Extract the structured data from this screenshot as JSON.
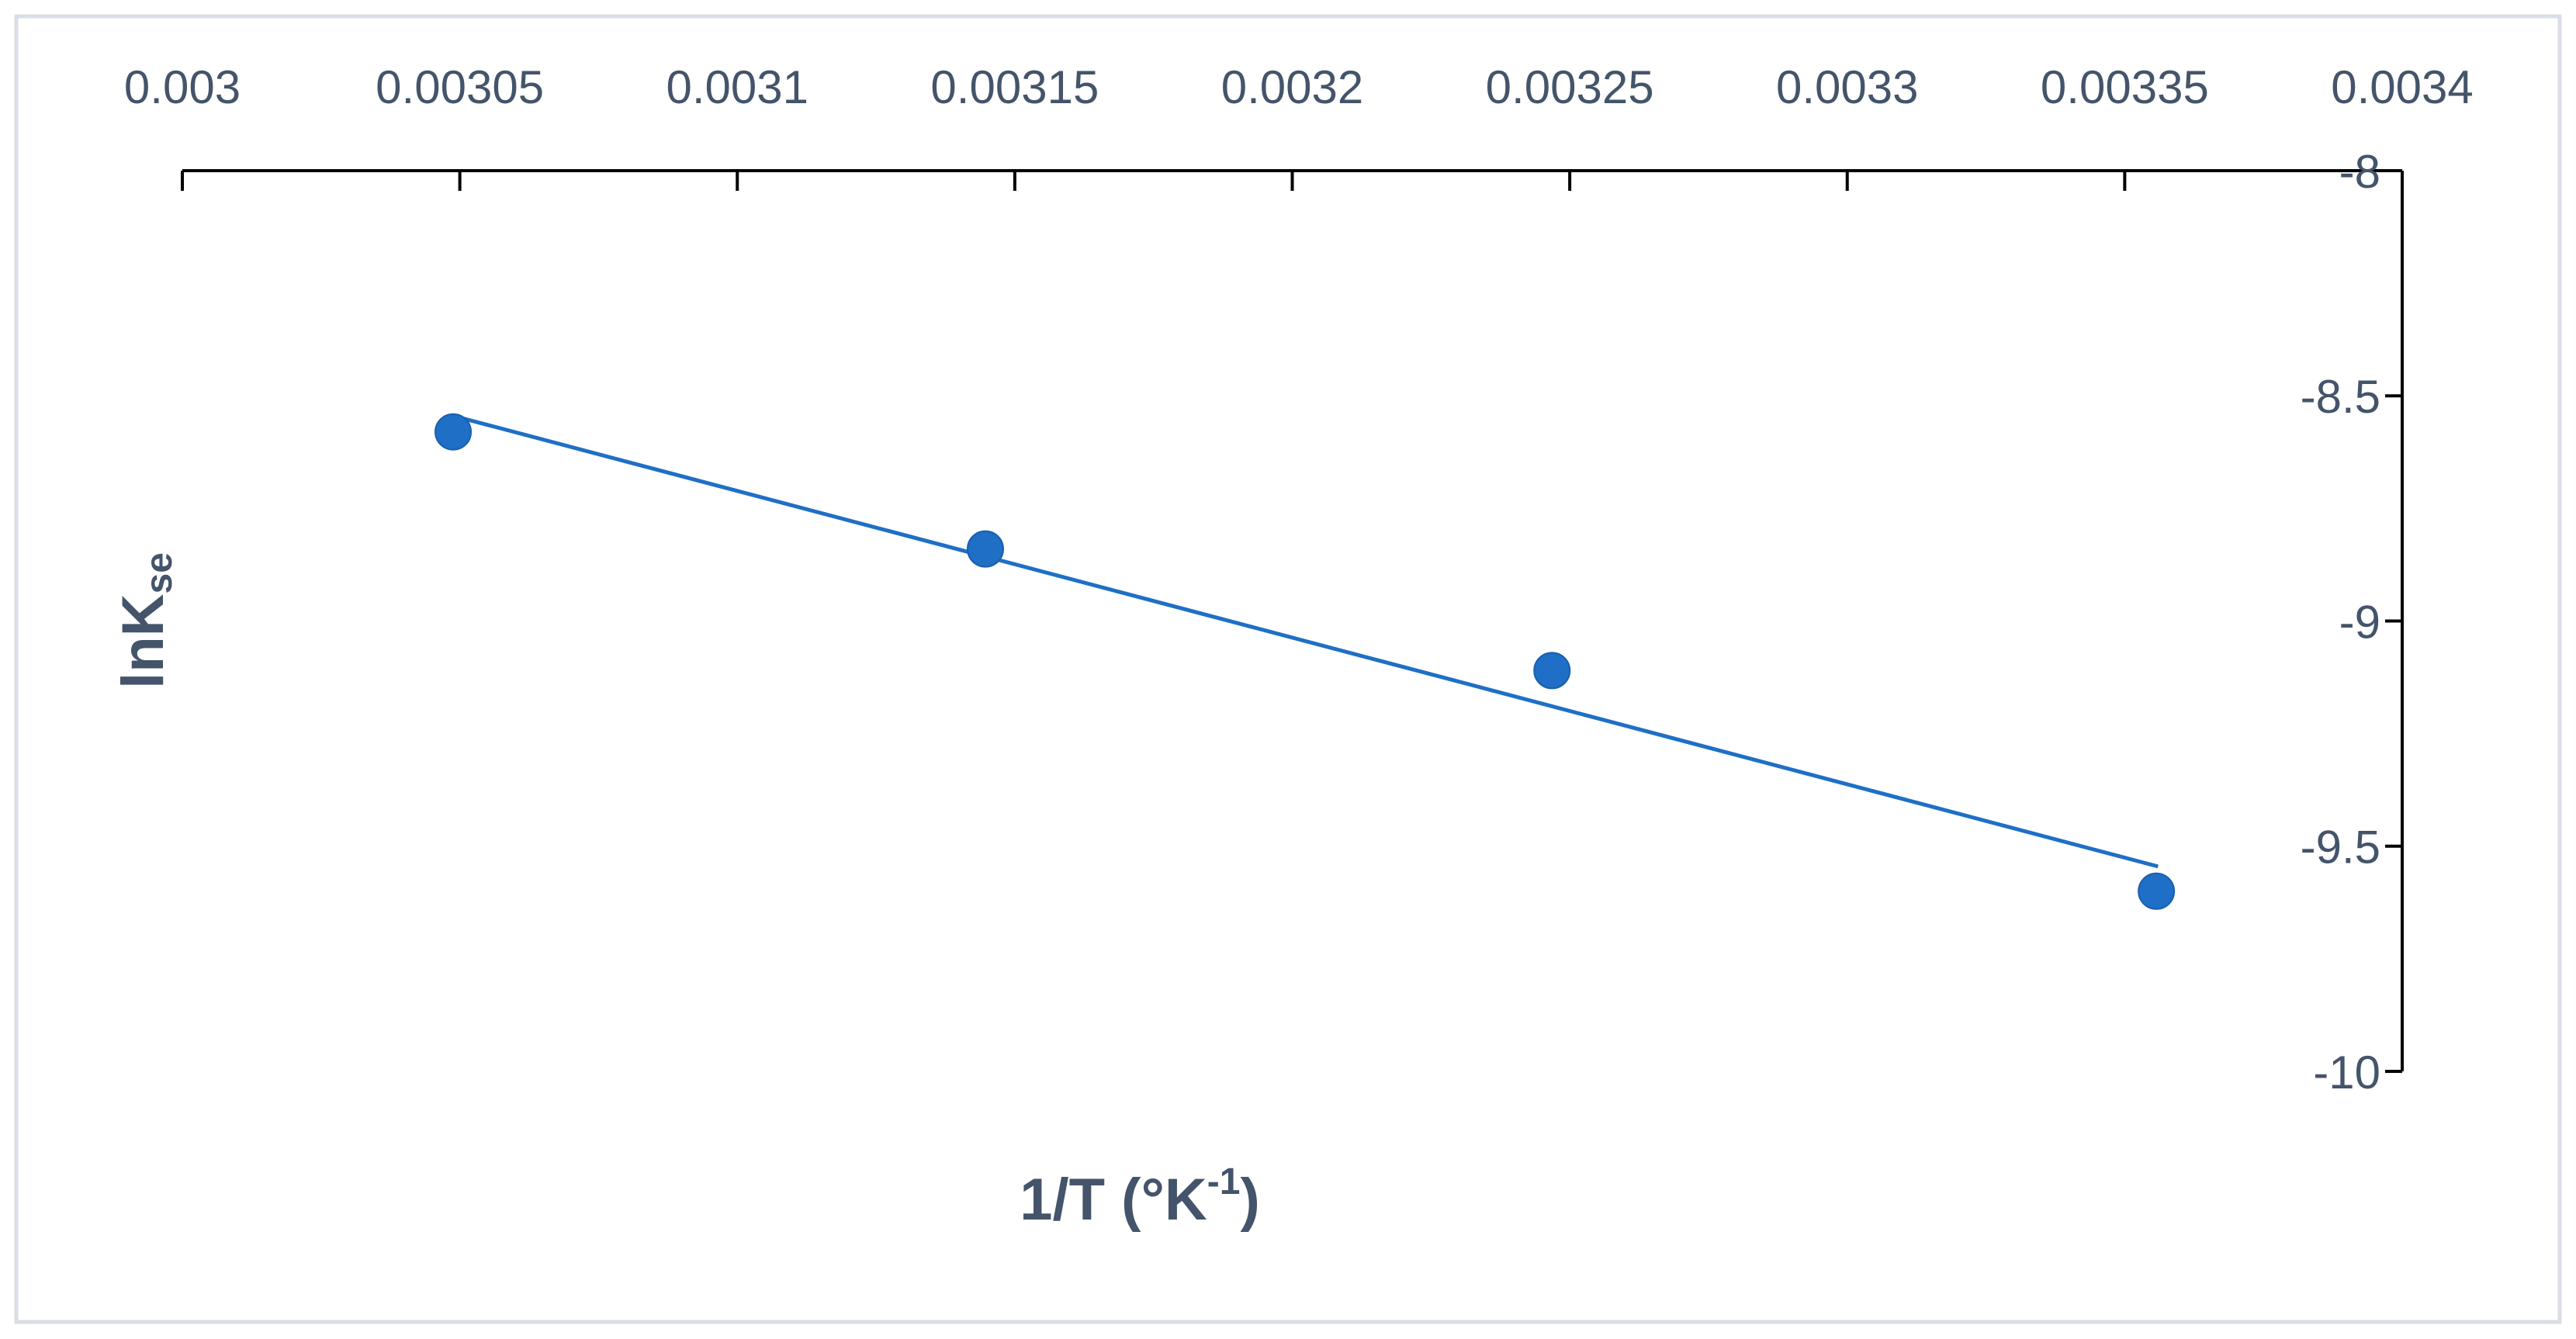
{
  "chart_data": {
    "type": "scatter",
    "x_label": {
      "text": "1/T (°K",
      "sup": "-1",
      "end": ")"
    },
    "y_label": {
      "text": "lnK",
      "sub": "se"
    },
    "x": [
      0.0030488,
      0.0031447,
      0.0032468,
      0.0033557
    ],
    "series": [
      {
        "color": "#1f6fc6",
        "values": [
          -8.58,
          -8.84,
          -9.11,
          -9.6
        ]
      }
    ],
    "trendline": {
      "color": "#1f6fc6",
      "x": [
        0.003049,
        0.003356
      ],
      "values": [
        -8.545,
        -9.545
      ]
    },
    "xlim": [
      0.003,
      0.0034
    ],
    "xticks": [
      0.003,
      0.00305,
      0.0031,
      0.00315,
      0.0032,
      0.00325,
      0.0033,
      0.00335,
      0.0034
    ],
    "ylim": [
      -10,
      -8
    ],
    "yticks": [
      -8,
      -8.5,
      -9,
      -9.5,
      -10
    ]
  }
}
